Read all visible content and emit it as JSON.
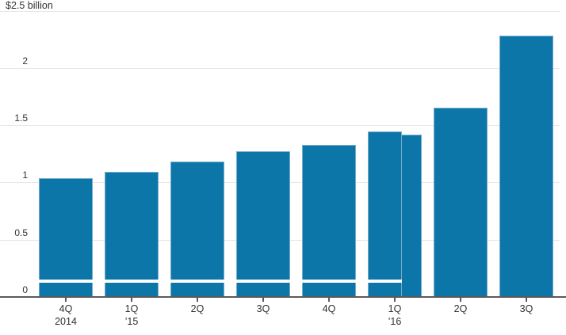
{
  "chart_data": {
    "type": "bar",
    "y_axis_title": "$2.5 billion",
    "ylim": [
      0,
      2.5
    ],
    "grid": "horizontal",
    "legend": "none",
    "yticks": [
      {
        "v": 0,
        "label": "0"
      },
      {
        "v": 0.5,
        "label": "0.5"
      },
      {
        "v": 1,
        "label": "1"
      },
      {
        "v": 1.5,
        "label": "1.5"
      },
      {
        "v": 2,
        "label": "2"
      },
      {
        "v": 2.5,
        "label": "$2.5 billion"
      }
    ],
    "categories": [
      {
        "line1": "4Q",
        "line2": "2014"
      },
      {
        "line1": "1Q",
        "line2": "’15"
      },
      {
        "line1": "2Q",
        "line2": ""
      },
      {
        "line1": "3Q",
        "line2": ""
      },
      {
        "line1": "4Q",
        "line2": ""
      },
      {
        "line1": "1Q",
        "line2": "’16"
      },
      {
        "line1": "2Q",
        "line2": ""
      },
      {
        "line1": "3Q",
        "line2": ""
      }
    ],
    "values": [
      1.04,
      1.09,
      1.18,
      1.27,
      1.33,
      1.42,
      1.65,
      2.28
    ],
    "overlay_bar": {
      "category_index": 5,
      "value": 1.445,
      "width_fraction": 0.63,
      "align": "left"
    },
    "segment_divider": {
      "value": 0.138,
      "full_width_bar_indexes": [
        0,
        1,
        2,
        3,
        4
      ],
      "overlay_only": true
    },
    "colors": {
      "bar_fill": "#0d76a9",
      "bar_stroke": "#74accd",
      "divider": "#ffffff",
      "gridline": "#e7e7e7",
      "axis": "#5a5a5c",
      "text": "#333333"
    }
  }
}
